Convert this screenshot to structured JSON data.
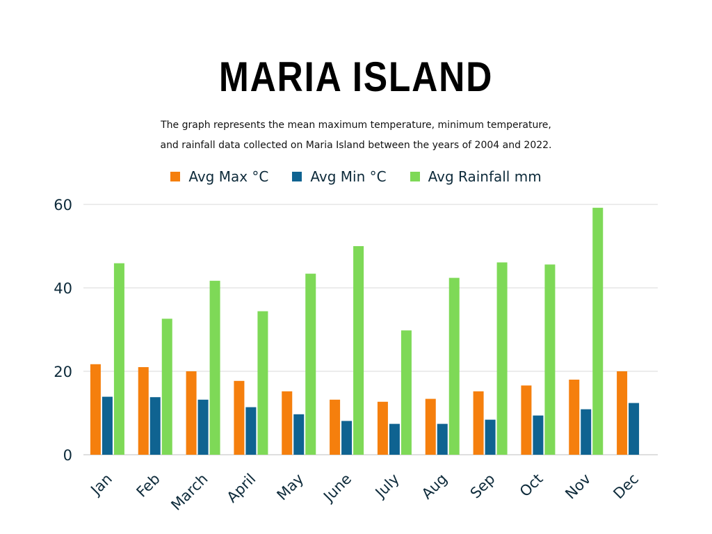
{
  "title": "MARIA ISLAND",
  "subtitle_line1": "The graph represents the mean maximum temperature, minimum temperature,",
  "subtitle_line2": "and rainfall data collected on Maria Island between the years of 2004 and 2022.",
  "colors": {
    "max": "#f57f0d",
    "min": "#0f6391",
    "rain": "#7ed957",
    "grid": "#d9d9d9",
    "axis_text": "#0d2a3a"
  },
  "chart_data": {
    "type": "bar",
    "categories": [
      "Jan",
      "Feb",
      "March",
      "April",
      "May",
      "June",
      "July",
      "Aug",
      "Sep",
      "Oct",
      "Nov",
      "Dec"
    ],
    "series": [
      {
        "name": "Avg Max °C",
        "values": [
          21.7,
          21.0,
          20.0,
          17.7,
          15.2,
          13.2,
          12.7,
          13.4,
          15.2,
          16.6,
          18.0,
          20.0
        ]
      },
      {
        "name": "Avg Min °C",
        "values": [
          13.9,
          13.8,
          13.2,
          11.4,
          9.7,
          8.1,
          7.4,
          7.4,
          8.4,
          9.4,
          10.9,
          12.4
        ]
      },
      {
        "name": "Avg Rainfall mm",
        "values": [
          45.9,
          32.6,
          41.7,
          34.4,
          43.4,
          50.0,
          29.8,
          42.4,
          46.1,
          45.6,
          59.2,
          null
        ]
      }
    ],
    "ylim": [
      0,
      60
    ],
    "yticks": [
      0,
      20,
      40,
      60
    ],
    "grid": true,
    "legend_position": "top"
  }
}
